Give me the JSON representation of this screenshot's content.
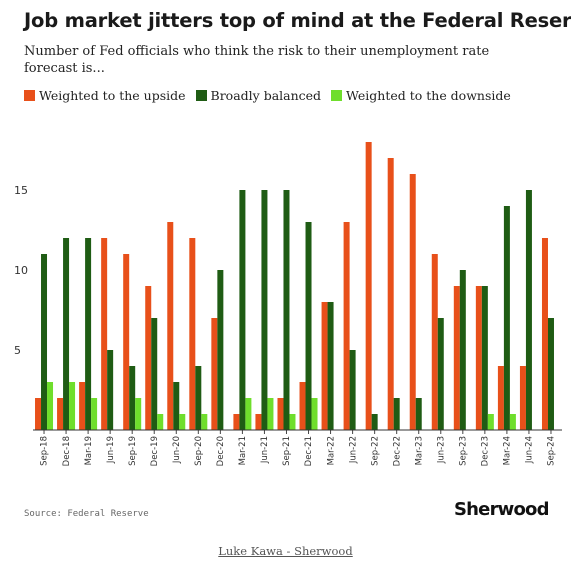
{
  "title": "Job market jitters top of mind at the Federal Reserve",
  "subtitle": "Number of Fed officials who think the risk to their unemployment rate forecast is...",
  "source": "Source: Federal Reserve",
  "logo": "Sherwood",
  "credit": "Luke Kawa - Sherwood",
  "colors": {
    "upside": "#e8501a",
    "balanced": "#1f5c14",
    "downside": "#6fde2c"
  },
  "chart_data": {
    "type": "bar",
    "categories": [
      "Sep-18",
      "Dec-18",
      "Mar-19",
      "Jun-19",
      "Sep-19",
      "Dec-19",
      "Jun-20",
      "Sep-20",
      "Dec-20",
      "Mar-21",
      "Jun-21",
      "Sep-21",
      "Dec-21",
      "Mar-22",
      "Jun-22",
      "Sep-22",
      "Dec-22",
      "Mar-23",
      "Jun-23",
      "Sep-23",
      "Dec-23",
      "Mar-24",
      "Jun-24",
      "Sep-24"
    ],
    "series": [
      {
        "name": "Weighted to the upside",
        "key": "upside",
        "values": [
          2,
          2,
          3,
          12,
          11,
          9,
          13,
          12,
          7,
          1,
          1,
          2,
          3,
          8,
          13,
          18,
          17,
          16,
          11,
          9,
          9,
          4,
          4,
          12
        ]
      },
      {
        "name": "Broadly balanced",
        "key": "balanced",
        "values": [
          11,
          12,
          12,
          5,
          4,
          7,
          3,
          4,
          10,
          15,
          15,
          15,
          13,
          8,
          5,
          1,
          2,
          2,
          7,
          10,
          9,
          14,
          15,
          7
        ]
      },
      {
        "name": "Weighted to the downside",
        "key": "downside",
        "values": [
          3,
          3,
          2,
          0,
          2,
          1,
          1,
          1,
          0,
          2,
          2,
          1,
          2,
          0,
          0,
          0,
          0,
          0,
          0,
          0,
          1,
          1,
          0,
          0
        ]
      }
    ],
    "yticks": [
      5,
      10,
      15
    ],
    "ylim": [
      0,
      19.5
    ],
    "grid": false,
    "legend": "top-left"
  }
}
